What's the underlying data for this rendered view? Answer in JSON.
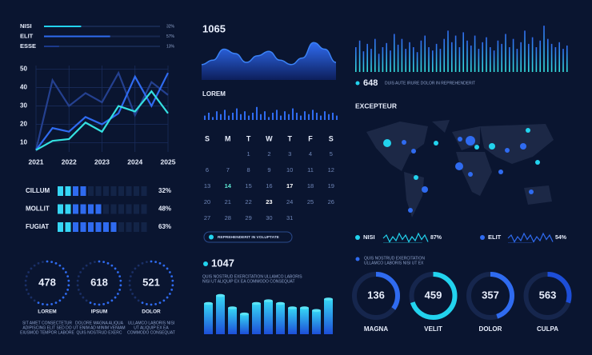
{
  "top_bars": [
    {
      "label": "NISI",
      "percent": 32,
      "percent_label": "32%",
      "color": "#22d3ee"
    },
    {
      "label": "ELIT",
      "percent": 57,
      "percent_label": "57%",
      "color": "#2f6bf0"
    },
    {
      "label": "ESSE",
      "percent": 13,
      "percent_label": "13%",
      "color": "#1b3a8c"
    }
  ],
  "line_chart": {
    "x": [
      2021,
      2021.5,
      2022,
      2022.5,
      2023,
      2023.5,
      2024,
      2024.5,
      2025
    ],
    "xlim": [
      2021,
      2025
    ],
    "xticks": [
      2021,
      2022,
      2023,
      2024,
      2025
    ],
    "ylim": [
      5,
      52
    ],
    "yticks": [
      10,
      20,
      30,
      40,
      50
    ],
    "grid": true,
    "series": [
      {
        "color": "#24408f",
        "values": [
          6,
          44,
          30,
          37,
          32,
          48,
          25,
          43,
          36
        ]
      },
      {
        "color": "#2f6bf0",
        "values": [
          6,
          18,
          16,
          24,
          20,
          26,
          46,
          30,
          48
        ]
      },
      {
        "color": "#34e0e0",
        "values": [
          6,
          11,
          12,
          21,
          16,
          30,
          27,
          38,
          26
        ]
      }
    ]
  },
  "progress": [
    {
      "label": "CILLUM",
      "value": 32,
      "value_label": "32%"
    },
    {
      "label": "MOLLIT",
      "value": 48,
      "value_label": "48%"
    },
    {
      "label": "FUGIAT",
      "value": 63,
      "value_label": "63%"
    }
  ],
  "radials": [
    {
      "value": 478,
      "label": "LOREM",
      "caption": [
        "SIT AMET CONSECTETUR",
        "ADIPISCING ELIT SED DO",
        "EIUSMOD TEMPOR LABORE"
      ]
    },
    {
      "value": 618,
      "label": "IPSUM",
      "caption": [
        "DOLORE MAGNA ALIQUA",
        "UT ENIM AD MINIM VENIAM",
        "QUIS NOSTRUD EXERC"
      ]
    },
    {
      "value": 521,
      "label": "DOLOR",
      "caption": [
        "ULLAMCO LABORIS NISI",
        "UT ALIQUIP EX EA",
        "COMMODO CONSEQUAT"
      ]
    }
  ],
  "wave": {
    "value": 1065,
    "ylim": [
      0,
      100
    ],
    "values": [
      35,
      45,
      70,
      60,
      40,
      55,
      65,
      45,
      35,
      50,
      85,
      70,
      40
    ]
  },
  "sparkline": {
    "label": "LOREM",
    "ylim": [
      0,
      10
    ],
    "values": [
      3,
      5,
      2,
      6,
      4,
      7,
      3,
      5,
      8,
      4,
      6,
      3,
      5,
      9,
      4,
      6,
      2,
      5,
      7,
      3,
      6,
      4,
      8,
      5,
      3,
      6,
      4,
      7,
      5,
      3,
      6,
      4,
      5,
      3
    ]
  },
  "calendar": {
    "weekdays": [
      "S",
      "M",
      "T",
      "W",
      "T",
      "F",
      "S"
    ],
    "weeks": [
      [
        null,
        null,
        1,
        2,
        3,
        4,
        5
      ],
      [
        6,
        7,
        8,
        9,
        10,
        11,
        12
      ],
      [
        13,
        14,
        15,
        16,
        17,
        18,
        19
      ],
      [
        20,
        21,
        22,
        23,
        24,
        25,
        26
      ],
      [
        27,
        28,
        29,
        30,
        31,
        null,
        null
      ]
    ],
    "highlight_days": [
      14,
      17,
      23
    ],
    "button": "REPREHENDERIT IN VOLUPTATE"
  },
  "bars": {
    "value": 1047,
    "text": [
      "QUIS NOSTRUD EXERCITATION ULLAMCO LABORIS",
      "NISI UT ALIQUIP EX EA COMMODO CONSEQUAT"
    ],
    "ylim": [
      0,
      50
    ],
    "values": [
      35,
      44,
      30,
      23,
      35,
      38,
      35,
      30,
      30,
      27,
      40
    ]
  },
  "spikes": {
    "value": 648,
    "text": "DUIS AUTE IRURE DOLOR IN REPREHENDERIT",
    "ylim": [
      0,
      60
    ],
    "values": [
      30,
      38,
      25,
      34,
      28,
      40,
      22,
      30,
      35,
      26,
      46,
      33,
      40,
      28,
      36,
      30,
      24,
      38,
      44,
      30,
      26,
      34,
      28,
      40,
      50,
      36,
      44,
      30,
      48,
      38,
      32,
      44,
      28,
      36,
      42,
      30,
      26,
      38,
      34,
      46,
      30,
      40,
      28,
      36,
      50,
      34,
      42,
      30,
      38,
      56,
      40,
      34,
      30,
      36,
      28,
      32
    ]
  },
  "map": {
    "title": "EXCEPTEUR"
  },
  "legend": [
    {
      "label": "NISI",
      "value": 87,
      "value_label": "87%",
      "color": "#22d3ee"
    },
    {
      "label": "ELIT",
      "value": 54,
      "value_label": "54%",
      "color": "#2f6bf0"
    }
  ],
  "note": [
    "QUIS NOSTRUD EXERCITATION",
    "ULLAMCO LABORIS NISI UT EX"
  ],
  "donuts": [
    {
      "value": 136,
      "label": "MAGNA",
      "arc": 35,
      "color": "#2f6bf0"
    },
    {
      "value": 459,
      "label": "VELIT",
      "arc": 70,
      "color": "#22d3ee"
    },
    {
      "value": 357,
      "label": "DOLOR",
      "arc": 45,
      "color": "#2f6bf0"
    },
    {
      "value": 563,
      "label": "CULPA",
      "arc": 30,
      "color": "#1d4ed8"
    }
  ]
}
